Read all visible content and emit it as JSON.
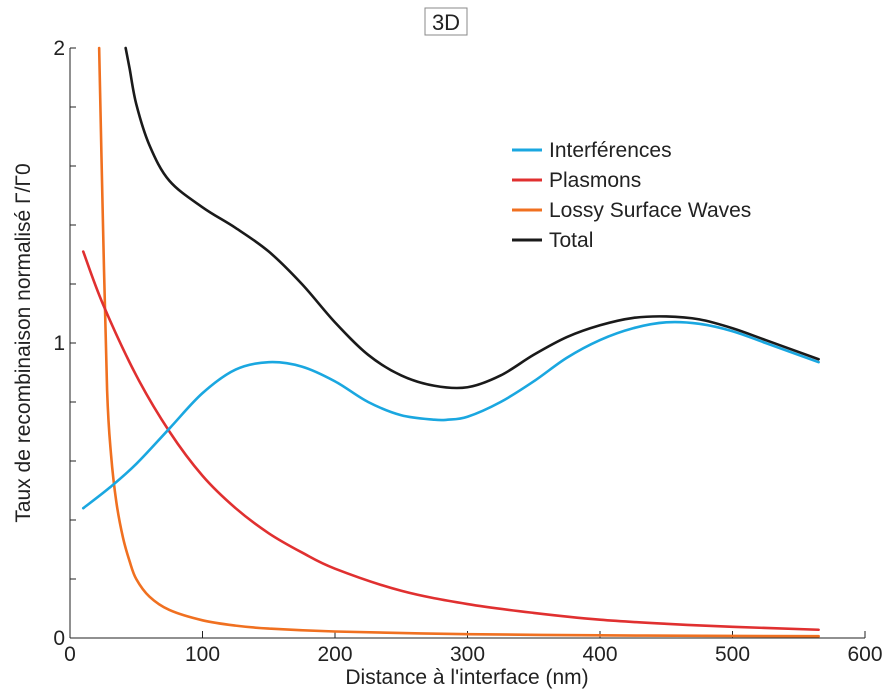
{
  "chart_data": {
    "type": "line",
    "title": "3D",
    "xlabel": "Distance à l'interface (nm)",
    "ylabel": "Taux de recombinaison normalisé Γ/Γ0",
    "xlim": [
      0,
      600
    ],
    "ylim": [
      0,
      2
    ],
    "xticks": [
      0,
      100,
      200,
      300,
      400,
      500,
      600
    ],
    "xtick_labels": [
      "0",
      "100",
      "200",
      "300",
      "400",
      "500",
      "600"
    ],
    "yticks": [
      0,
      1,
      2
    ],
    "ytick_labels": [
      "0",
      "1",
      "2"
    ],
    "grid": false,
    "legend_position": "top-right",
    "series": [
      {
        "name": "Interférences",
        "color": "#1aa7e0",
        "x": [
          10,
          30,
          50,
          75,
          100,
          125,
          150,
          175,
          200,
          225,
          250,
          275,
          285,
          300,
          325,
          350,
          375,
          400,
          425,
          450,
          475,
          500,
          525,
          565
        ],
        "y": [
          0.44,
          0.51,
          0.59,
          0.71,
          0.83,
          0.91,
          0.935,
          0.92,
          0.87,
          0.8,
          0.755,
          0.74,
          0.74,
          0.75,
          0.8,
          0.87,
          0.95,
          1.01,
          1.05,
          1.07,
          1.065,
          1.04,
          1.0,
          0.935
        ]
      },
      {
        "name": "Plasmons",
        "color": "#e03030",
        "x": [
          10,
          25,
          50,
          75,
          100,
          125,
          150,
          175,
          200,
          250,
          300,
          350,
          400,
          450,
          500,
          565
        ],
        "y": [
          1.31,
          1.13,
          0.89,
          0.7,
          0.55,
          0.44,
          0.355,
          0.29,
          0.235,
          0.16,
          0.115,
          0.085,
          0.062,
          0.048,
          0.038,
          0.028
        ]
      },
      {
        "name": "Lossy Surface Waves",
        "color": "#f07020",
        "x": [
          22,
          25,
          28,
          31,
          35,
          40,
          45,
          50,
          60,
          75,
          100,
          125,
          150,
          200,
          300,
          400,
          500,
          565
        ],
        "y": [
          2.0,
          1.38,
          0.84,
          0.62,
          0.46,
          0.34,
          0.26,
          0.2,
          0.14,
          0.095,
          0.06,
          0.042,
          0.032,
          0.022,
          0.013,
          0.009,
          0.007,
          0.006
        ]
      },
      {
        "name": "Total",
        "color": "#1a1a1a",
        "x": [
          42,
          45,
          50,
          60,
          75,
          100,
          125,
          150,
          175,
          200,
          225,
          250,
          275,
          300,
          325,
          350,
          375,
          400,
          425,
          450,
          475,
          500,
          525,
          565
        ],
        "y": [
          2.0,
          1.93,
          1.81,
          1.67,
          1.55,
          1.46,
          1.39,
          1.31,
          1.2,
          1.07,
          0.96,
          0.89,
          0.855,
          0.85,
          0.89,
          0.96,
          1.02,
          1.06,
          1.085,
          1.09,
          1.08,
          1.05,
          1.01,
          0.945
        ]
      }
    ]
  }
}
